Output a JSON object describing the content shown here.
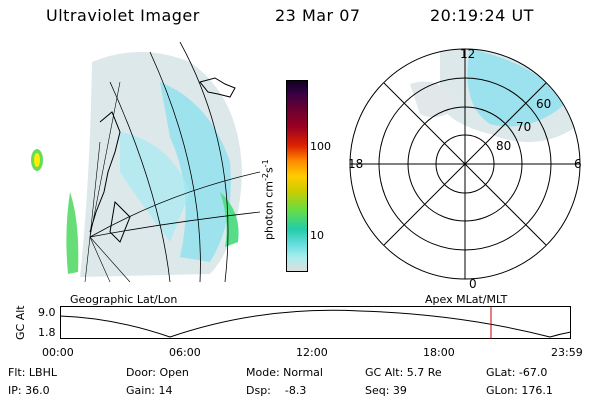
{
  "header": {
    "instrument": "Ultraviolet Imager",
    "date": "23 Mar 07",
    "time": "20:19:24 UT"
  },
  "left_panel": {
    "caption": "Geographic Lat/Lon"
  },
  "right_panel": {
    "caption": "Apex MLat/MLT",
    "mlt_labels": {
      "top": "12",
      "left": "18",
      "right": "6",
      "bottom": "0"
    },
    "mlat_labels": [
      "60",
      "70",
      "80"
    ]
  },
  "colorbar": {
    "unit_label": "photon cm",
    "unit_sup1": "-2",
    "unit_mid": "s",
    "unit_sup2": "-1",
    "ticks": [
      "100",
      "10"
    ]
  },
  "altitude_plot": {
    "ylabel": "GC Alt",
    "ymax_label": "9.0",
    "ymin_label": "1.8",
    "x_ticks": [
      "00:00",
      "06:00",
      "12:00",
      "18:00",
      "23:59"
    ],
    "marker_color": "#cc0000"
  },
  "footer": {
    "filt": "Flt: LBHL",
    "ip": "IP: 36.0",
    "door": "Door: Open",
    "gain": "Gain: 14",
    "mode": "Mode: Normal",
    "dsp": "Dsp:    -8.3",
    "gcalt": "GC Alt: 5.7 Re",
    "seq": "Seq: 39",
    "glat": "GLat: -67.0",
    "glon": "GLon: 176.1"
  }
}
